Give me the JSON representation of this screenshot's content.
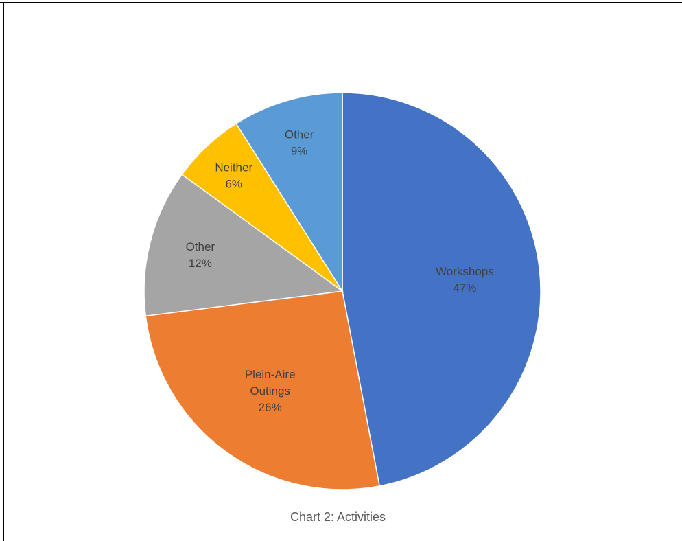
{
  "chart_data": {
    "type": "pie",
    "title": "Chart 2: Activities",
    "slices": [
      {
        "label": "Workshops",
        "value": 47,
        "value_label": "47%",
        "color": "#4472C4"
      },
      {
        "label": "Plein-Aire Outings",
        "value": 26,
        "value_label": "26%",
        "color": "#ED7D31"
      },
      {
        "label": "Other",
        "value": 12,
        "value_label": "12%",
        "color": "#A5A5A5"
      },
      {
        "label": "Neither",
        "value": 6,
        "value_label": "6%",
        "color": "#FFC000"
      },
      {
        "label": "Other",
        "value": 9,
        "value_label": "9%",
        "color": "#5B9BD5"
      }
    ],
    "start_angle": "12 o'clock",
    "direction": "clockwise",
    "legend": "none"
  }
}
